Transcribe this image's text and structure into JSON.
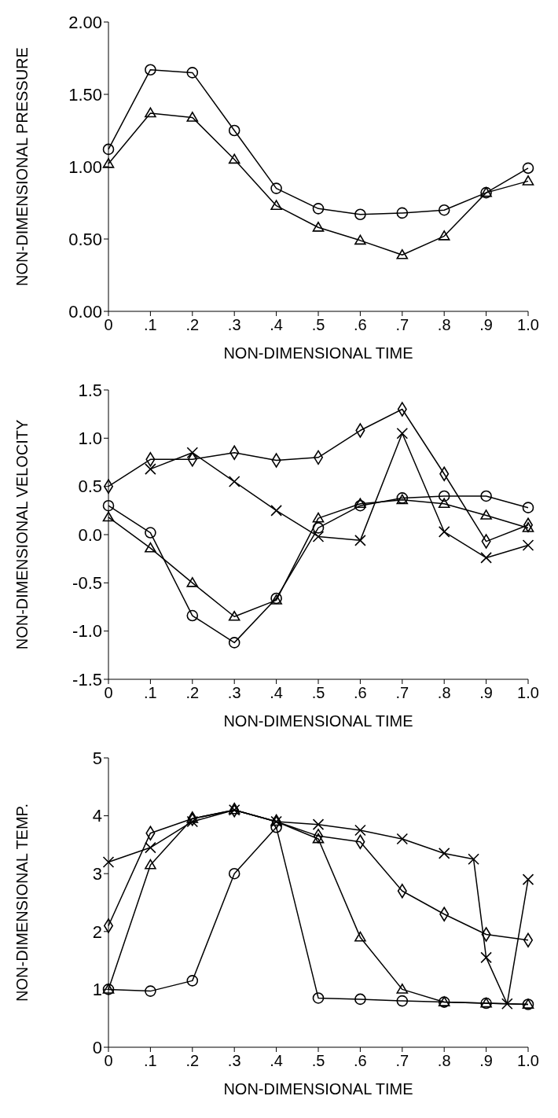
{
  "chart_data": [
    {
      "type": "line",
      "xlabel": "NON-DIMENSIONAL TIME",
      "ylabel": "NON-DIMENSIONAL PRESSURE",
      "x": [
        0,
        0.1,
        0.2,
        0.3,
        0.4,
        0.5,
        0.6,
        0.7,
        0.8,
        0.9,
        1.0
      ],
      "xlim": [
        0,
        1
      ],
      "xticks": [
        {
          "value": 0,
          "label": "0"
        },
        {
          "value": 0.1,
          "label": ".1"
        },
        {
          "value": 0.2,
          "label": ".2"
        },
        {
          "value": 0.3,
          "label": ".3"
        },
        {
          "value": 0.4,
          "label": ".4"
        },
        {
          "value": 0.5,
          "label": ".5"
        },
        {
          "value": 0.6,
          "label": ".6"
        },
        {
          "value": 0.7,
          "label": ".7"
        },
        {
          "value": 0.8,
          "label": ".8"
        },
        {
          "value": 0.9,
          "label": ".9"
        },
        {
          "value": 1,
          "label": "1.0"
        }
      ],
      "ylim": [
        0,
        2
      ],
      "yticks": [
        {
          "value": 0,
          "label": "0.00"
        },
        {
          "value": 0.5,
          "label": "0.50"
        },
        {
          "value": 1,
          "label": "1.00"
        },
        {
          "value": 1.5,
          "label": "1.50"
        },
        {
          "value": 2,
          "label": "2.00"
        }
      ],
      "series": [
        {
          "color": "#000000",
          "marker": "circle",
          "values": [
            1.12,
            1.67,
            1.65,
            1.25,
            0.85,
            0.71,
            0.67,
            0.68,
            0.7,
            0.82,
            0.99
          ]
        },
        {
          "color": "#000000",
          "marker": "triangle",
          "values": [
            1.02,
            1.37,
            1.34,
            1.05,
            0.73,
            0.58,
            0.49,
            0.39,
            0.52,
            0.82,
            0.9
          ]
        }
      ]
    },
    {
      "type": "line",
      "xlabel": "NON-DIMENSIONAL TIME",
      "ylabel": "NON-DIMENSIONAL VELOCITY",
      "x": [
        0,
        0.1,
        0.2,
        0.3,
        0.4,
        0.5,
        0.6,
        0.7,
        0.8,
        0.9,
        1.0
      ],
      "xlim": [
        0,
        1
      ],
      "xticks": [
        {
          "value": 0,
          "label": "0"
        },
        {
          "value": 0.1,
          "label": ".1"
        },
        {
          "value": 0.2,
          "label": ".2"
        },
        {
          "value": 0.3,
          "label": ".3"
        },
        {
          "value": 0.4,
          "label": ".4"
        },
        {
          "value": 0.5,
          "label": ".5"
        },
        {
          "value": 0.6,
          "label": ".6"
        },
        {
          "value": 0.7,
          "label": ".7"
        },
        {
          "value": 0.8,
          "label": ".8"
        },
        {
          "value": 0.9,
          "label": ".9"
        },
        {
          "value": 1,
          "label": "1.0"
        }
      ],
      "ylim": [
        -1.5,
        1.5
      ],
      "yticks": [
        -1.5,
        {
          "value": -1,
          "label": "-1.0"
        },
        -0.5,
        {
          "value": 0,
          "label": "0.0"
        },
        0.5,
        {
          "value": 1,
          "label": "1.0"
        },
        1.5
      ],
      "series": [
        {
          "color": "#000000",
          "marker": "diamond",
          "values": [
            0.5,
            0.78,
            0.78,
            0.85,
            0.77,
            0.8,
            1.08,
            1.3,
            0.63,
            -0.07,
            0.1
          ]
        },
        {
          "color": "#000000",
          "marker": "cross",
          "values": [
            null,
            0.68,
            0.85,
            0.55,
            0.25,
            -0.02,
            -0.06,
            1.05,
            0.03,
            -0.24,
            -0.11
          ]
        },
        {
          "color": "#000000",
          "marker": "circle",
          "values": [
            0.3,
            0.02,
            -0.84,
            -1.12,
            -0.66,
            0.07,
            0.3,
            0.38,
            0.4,
            0.4,
            0.28
          ]
        },
        {
          "color": "#000000",
          "marker": "triangle",
          "values": [
            0.18,
            -0.14,
            -0.5,
            -0.85,
            -0.68,
            0.17,
            0.32,
            0.36,
            0.32,
            0.2,
            0.07
          ]
        }
      ]
    },
    {
      "type": "line",
      "xlabel": "NON-DIMENSIONAL TIME",
      "ylabel": "NON-DIMENSIONAL TEMP.",
      "x": [
        0,
        0.1,
        0.2,
        0.3,
        0.4,
        0.5,
        0.6,
        0.7,
        0.8,
        0.9,
        1.0
      ],
      "xlim": [
        0,
        1
      ],
      "xticks": [
        {
          "value": 0,
          "label": "0"
        },
        {
          "value": 0.1,
          "label": ".1"
        },
        {
          "value": 0.2,
          "label": ".2"
        },
        {
          "value": 0.3,
          "label": ".3"
        },
        {
          "value": 0.4,
          "label": ".4"
        },
        {
          "value": 0.5,
          "label": ".5"
        },
        {
          "value": 0.6,
          "label": ".6"
        },
        {
          "value": 0.7,
          "label": ".7"
        },
        {
          "value": 0.8,
          "label": ".8"
        },
        {
          "value": 0.9,
          "label": ".9"
        },
        {
          "value": 1,
          "label": "1.0"
        }
      ],
      "ylim": [
        0,
        5
      ],
      "yticks": [
        0,
        1,
        2,
        3,
        4,
        5
      ],
      "series": [
        {
          "color": "#000000",
          "marker": "circle",
          "values": [
            1.0,
            0.97,
            1.15,
            3.0,
            3.8,
            0.85,
            0.83,
            0.8,
            0.78,
            0.76,
            0.74
          ]
        },
        {
          "color": "#000000",
          "marker": "triangle",
          "values": [
            1.0,
            3.15,
            3.95,
            4.1,
            3.9,
            3.6,
            1.9,
            1.0,
            0.78,
            0.76,
            0.74
          ]
        },
        {
          "color": "#000000",
          "marker": "diamond",
          "values": [
            2.1,
            3.7,
            3.95,
            4.1,
            3.9,
            3.65,
            3.55,
            2.7,
            2.3,
            1.95,
            1.85
          ]
        },
        {
          "color": "#000000",
          "marker": "cross",
          "x": [
            0,
            0.1,
            0.2,
            0.3,
            0.4,
            0.5,
            0.6,
            0.7,
            0.8,
            0.87,
            0.9,
            0.95,
            1.0
          ],
          "values": [
            3.2,
            3.45,
            3.9,
            4.1,
            3.9,
            3.85,
            3.75,
            3.6,
            3.35,
            3.25,
            1.55,
            0.75,
            2.9
          ]
        }
      ]
    }
  ]
}
